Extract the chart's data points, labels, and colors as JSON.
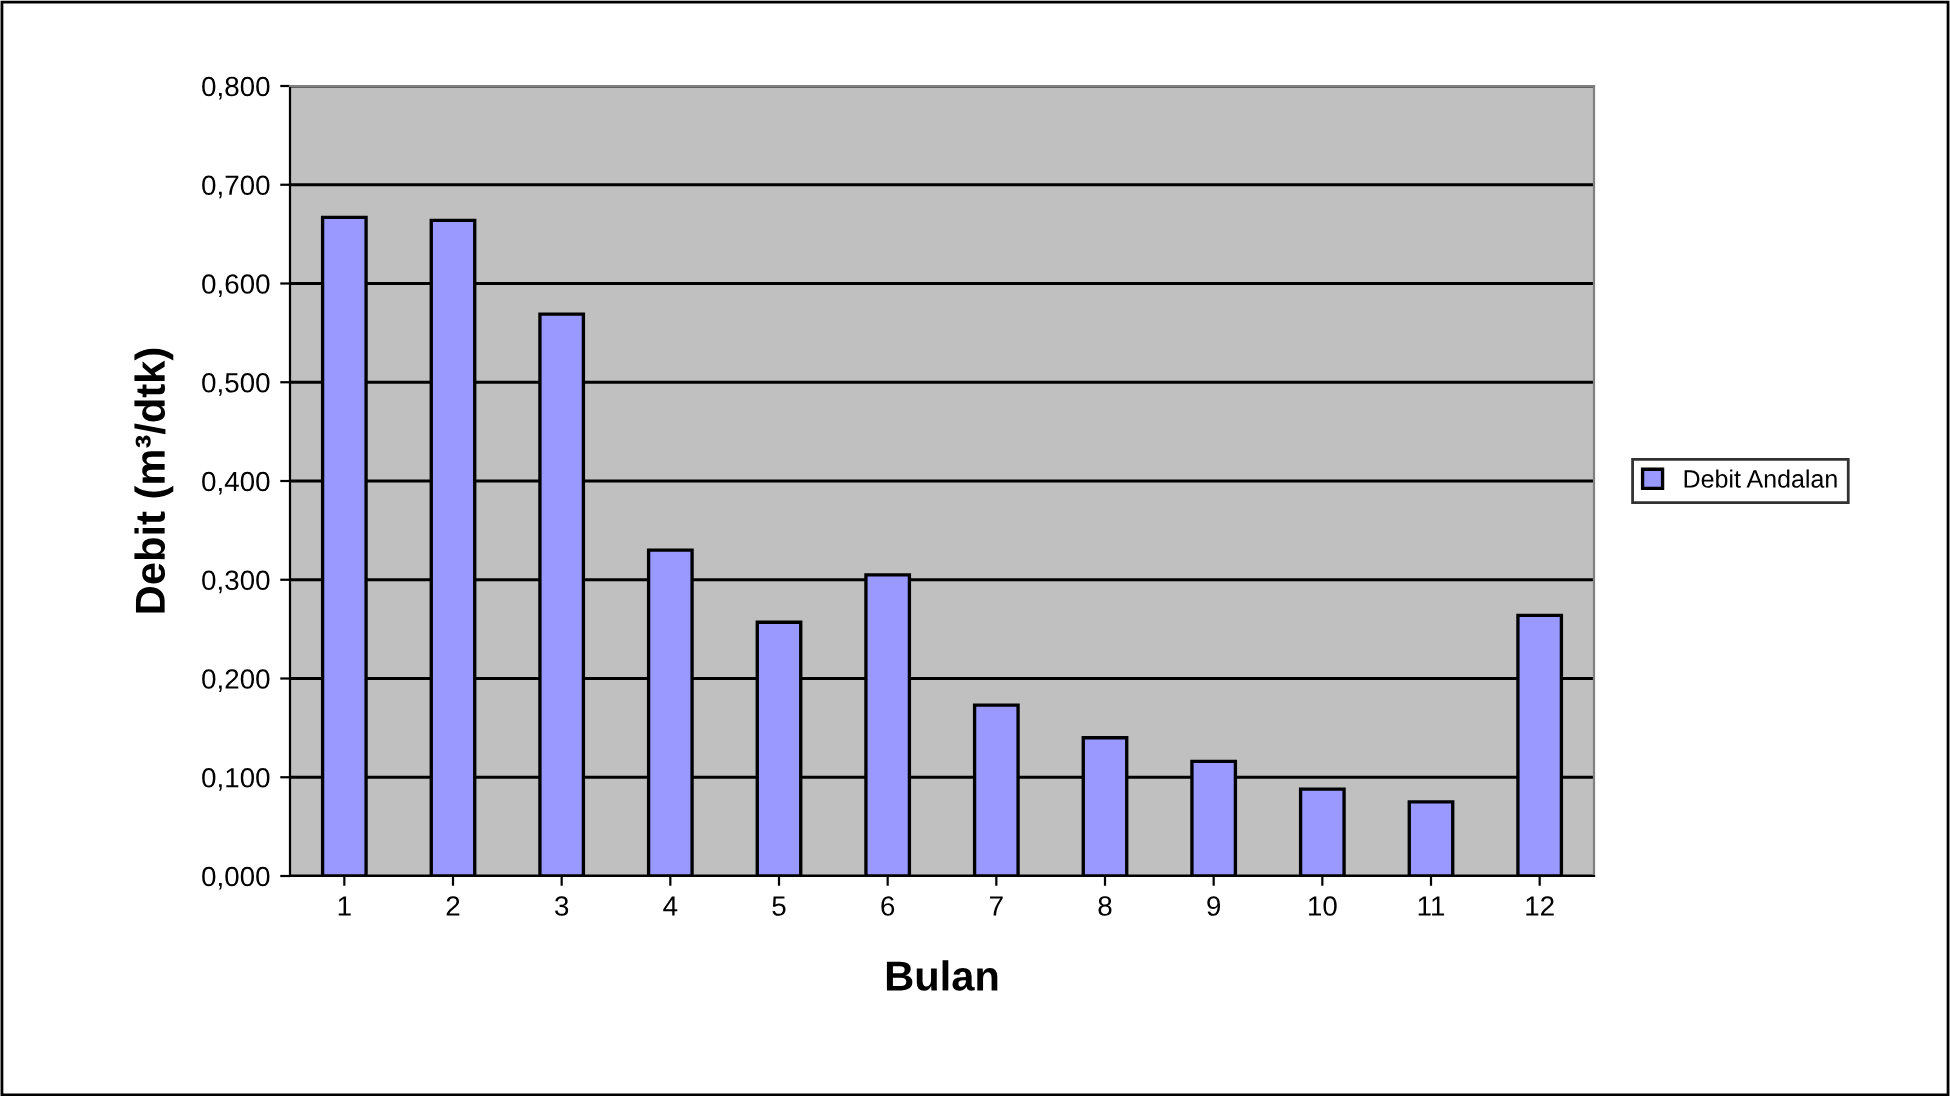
{
  "chart_data": {
    "type": "bar",
    "xlabel": "Bulan",
    "ylabel": "Debit (m³/dtk)",
    "categories": [
      "1",
      "2",
      "3",
      "4",
      "5",
      "6",
      "7",
      "8",
      "9",
      "10",
      "11",
      "12"
    ],
    "series": [
      {
        "name": "Debit Andalan",
        "color": "#9999ff",
        "values": [
          0.667,
          0.664,
          0.569,
          0.33,
          0.257,
          0.305,
          0.173,
          0.14,
          0.116,
          0.088,
          0.075,
          0.264
        ]
      }
    ],
    "ylim": [
      0,
      0.8
    ],
    "yticks": [
      {
        "value": 0,
        "label": "0,000"
      },
      {
        "value": 0.1,
        "label": "0,100"
      },
      {
        "value": 0.2,
        "label": "0,200"
      },
      {
        "value": 0.3,
        "label": "0,300"
      },
      {
        "value": 0.4,
        "label": "0,400"
      },
      {
        "value": 0.5,
        "label": "0,500"
      },
      {
        "value": 0.6,
        "label": "0,600"
      },
      {
        "value": 0.7,
        "label": "0,700"
      },
      {
        "value": 0.8,
        "label": "0,800"
      }
    ],
    "grid": "y",
    "legend": "right"
  }
}
